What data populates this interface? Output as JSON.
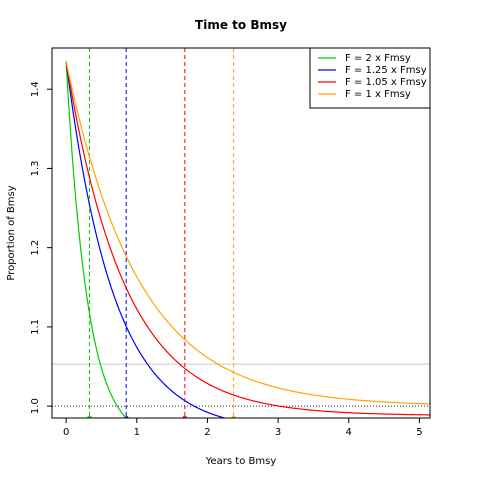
{
  "chart_data": {
    "type": "line",
    "title": "Time to Bmsy",
    "xlabel": "Years to Bmsy",
    "ylabel": "Proportion of Bmsy",
    "xlim": [
      -0.2,
      5.15
    ],
    "ylim": [
      0.985,
      1.452
    ],
    "x_ticks": [
      "0",
      "1",
      "2",
      "3",
      "4",
      "5"
    ],
    "y_ticks": [
      "1.0",
      "1.1",
      "1.2",
      "1.3",
      "1.4"
    ],
    "legend_position": "top-right",
    "grid": false,
    "series": [
      {
        "name": "F = 2 x Fmsy",
        "color": "#00cc00",
        "start": 1.435,
        "rate": 3.3,
        "target_year": 0.33
      },
      {
        "name": "F = 1.25 x Fmsy",
        "color": "#0000ff",
        "start": 1.435,
        "rate": 1.48,
        "target_year": 0.85
      },
      {
        "name": "F = 1.05 x Fmsy",
        "color": "#ff0000",
        "start": 1.435,
        "rate": 1.2,
        "target_year": 1.68
      },
      {
        "name": "F = 1 x Fmsy",
        "color": "#ffa500",
        "start": 1.435,
        "rate": 0.98,
        "target_year": 2.37
      }
    ],
    "reference_lines": {
      "upper": {
        "y": 1.053,
        "color": "#cccccc",
        "style": "solid"
      },
      "lower": {
        "y": 1.0,
        "color": "#333333",
        "style": "dotted"
      }
    }
  }
}
